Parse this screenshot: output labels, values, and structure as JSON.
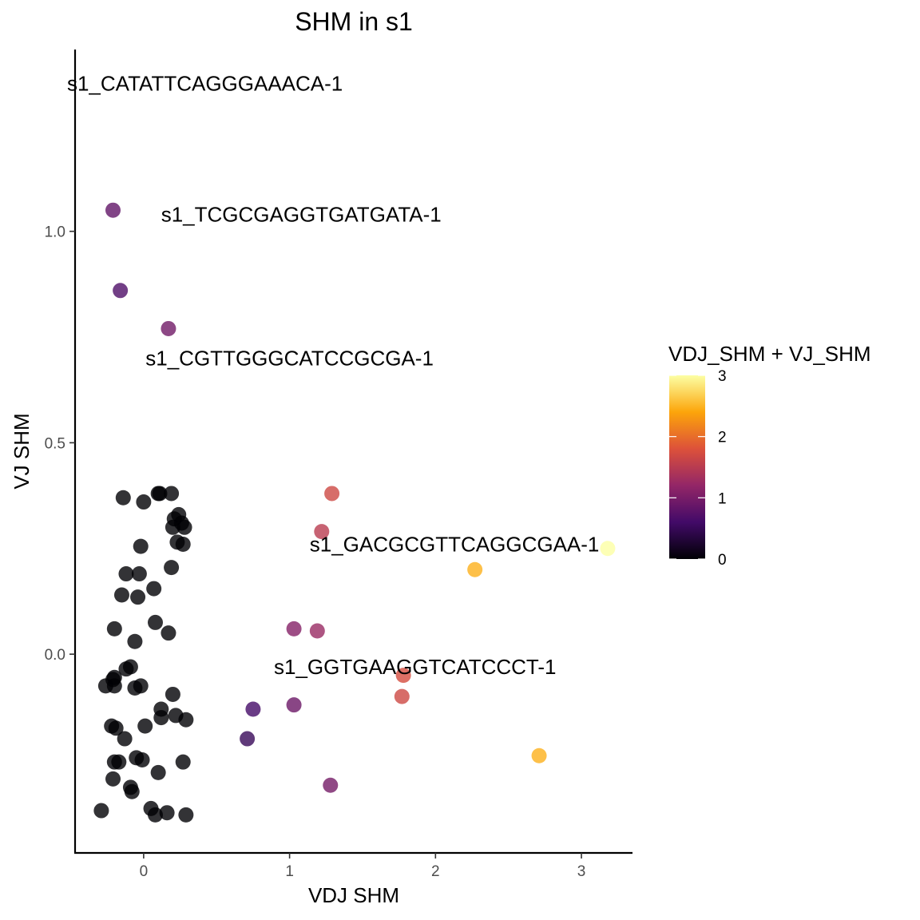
{
  "chart_data": {
    "type": "scatter",
    "title": "SHM in s1",
    "xlabel": "VDJ SHM",
    "ylabel": "VJ SHM",
    "xlim": [
      -0.47,
      3.35
    ],
    "ylim": [
      -0.47,
      1.43
    ],
    "x_ticks": [
      0,
      1,
      2,
      3
    ],
    "x_tick_labels": [
      "0",
      "1",
      "2",
      "3"
    ],
    "y_ticks": [
      0.0,
      0.5,
      1.0
    ],
    "y_tick_labels": [
      "0.0",
      "0.5",
      "1.0"
    ],
    "grid": false,
    "color_scale": {
      "title": "VDJ_SHM + VJ_SHM",
      "palette": "inferno",
      "domain": [
        0,
        3
      ],
      "ticks": [
        0,
        1,
        2,
        3
      ],
      "tick_labels": [
        "0",
        "1",
        "2",
        "3"
      ],
      "stops": [
        "#000004",
        "#420a68",
        "#932667",
        "#dd513a",
        "#fca50a",
        "#fcffa4"
      ],
      "legend_placement": "right"
    },
    "point_alpha": 0.8,
    "points": [
      {
        "x": -0.21,
        "y": 1.05,
        "c": 0.84
      },
      {
        "x": -0.16,
        "y": 0.86,
        "c": 0.7
      },
      {
        "x": 0.17,
        "y": 0.77,
        "c": 0.94
      },
      {
        "x": 1.29,
        "y": 0.38,
        "c": 1.67
      },
      {
        "x": 1.22,
        "y": 0.29,
        "c": 1.51
      },
      {
        "x": 3.18,
        "y": 0.25,
        "c": 3.43
      },
      {
        "x": 2.27,
        "y": 0.2,
        "c": 2.47
      },
      {
        "x": 1.03,
        "y": 0.06,
        "c": 1.09
      },
      {
        "x": 1.19,
        "y": 0.055,
        "c": 1.25
      },
      {
        "x": 1.78,
        "y": -0.05,
        "c": 1.73
      },
      {
        "x": 1.77,
        "y": -0.1,
        "c": 1.67
      },
      {
        "x": 0.75,
        "y": -0.13,
        "c": 0.62
      },
      {
        "x": 1.03,
        "y": -0.12,
        "c": 0.91
      },
      {
        "x": 0.71,
        "y": -0.2,
        "c": 0.51
      },
      {
        "x": 2.71,
        "y": -0.24,
        "c": 2.47
      },
      {
        "x": 1.28,
        "y": -0.31,
        "c": 0.97
      },
      {
        "x": -0.14,
        "y": 0.37,
        "c": 0
      },
      {
        "x": 0.0,
        "y": 0.36,
        "c": 0
      },
      {
        "x": 0.11,
        "y": 0.38,
        "c": 0
      },
      {
        "x": 0.1,
        "y": 0.38,
        "c": 0
      },
      {
        "x": 0.19,
        "y": 0.38,
        "c": 0
      },
      {
        "x": 0.24,
        "y": 0.33,
        "c": 0
      },
      {
        "x": 0.21,
        "y": 0.32,
        "c": 0
      },
      {
        "x": 0.26,
        "y": 0.31,
        "c": 0
      },
      {
        "x": 0.2,
        "y": 0.3,
        "c": 0
      },
      {
        "x": 0.28,
        "y": 0.3,
        "c": 0
      },
      {
        "x": 0.23,
        "y": 0.265,
        "c": 0
      },
      {
        "x": 0.27,
        "y": 0.26,
        "c": 0
      },
      {
        "x": -0.02,
        "y": 0.255,
        "c": 0
      },
      {
        "x": 0.19,
        "y": 0.205,
        "c": 0
      },
      {
        "x": -0.12,
        "y": 0.19,
        "c": 0
      },
      {
        "x": -0.03,
        "y": 0.19,
        "c": 0
      },
      {
        "x": 0.07,
        "y": 0.155,
        "c": 0
      },
      {
        "x": -0.15,
        "y": 0.14,
        "c": 0
      },
      {
        "x": -0.04,
        "y": 0.135,
        "c": 0
      },
      {
        "x": 0.08,
        "y": 0.075,
        "c": 0
      },
      {
        "x": -0.2,
        "y": 0.06,
        "c": 0
      },
      {
        "x": 0.17,
        "y": 0.05,
        "c": 0
      },
      {
        "x": -0.06,
        "y": 0.03,
        "c": 0
      },
      {
        "x": -0.09,
        "y": -0.03,
        "c": 0
      },
      {
        "x": -0.12,
        "y": -0.035,
        "c": 0
      },
      {
        "x": -0.2,
        "y": -0.055,
        "c": 0
      },
      {
        "x": -0.21,
        "y": -0.06,
        "c": 0
      },
      {
        "x": -0.26,
        "y": -0.075,
        "c": 0
      },
      {
        "x": -0.2,
        "y": -0.075,
        "c": 0
      },
      {
        "x": -0.02,
        "y": -0.075,
        "c": 0
      },
      {
        "x": -0.06,
        "y": -0.08,
        "c": 0
      },
      {
        "x": 0.2,
        "y": -0.095,
        "c": 0
      },
      {
        "x": 0.12,
        "y": -0.13,
        "c": 0
      },
      {
        "x": 0.22,
        "y": -0.145,
        "c": 0
      },
      {
        "x": 0.12,
        "y": -0.15,
        "c": 0
      },
      {
        "x": 0.29,
        "y": -0.155,
        "c": 0
      },
      {
        "x": -0.22,
        "y": -0.17,
        "c": 0
      },
      {
        "x": 0.01,
        "y": -0.17,
        "c": 0
      },
      {
        "x": -0.19,
        "y": -0.175,
        "c": 0
      },
      {
        "x": -0.13,
        "y": -0.2,
        "c": 0
      },
      {
        "x": -0.05,
        "y": -0.245,
        "c": 0
      },
      {
        "x": -0.01,
        "y": -0.25,
        "c": 0
      },
      {
        "x": -0.2,
        "y": -0.255,
        "c": 0
      },
      {
        "x": -0.17,
        "y": -0.255,
        "c": 0
      },
      {
        "x": 0.27,
        "y": -0.255,
        "c": 0
      },
      {
        "x": 0.1,
        "y": -0.28,
        "c": 0
      },
      {
        "x": -0.21,
        "y": -0.295,
        "c": 0
      },
      {
        "x": -0.09,
        "y": -0.315,
        "c": 0
      },
      {
        "x": -0.08,
        "y": -0.325,
        "c": 0
      },
      {
        "x": 0.05,
        "y": -0.365,
        "c": 0
      },
      {
        "x": 0.08,
        "y": -0.38,
        "c": 0
      },
      {
        "x": 0.16,
        "y": -0.375,
        "c": 0
      },
      {
        "x": 0.29,
        "y": -0.38,
        "c": 0
      },
      {
        "x": -0.29,
        "y": -0.37,
        "c": 0
      }
    ],
    "annotations": [
      {
        "text": "s1_CATATTCAGGGAAACA-1",
        "x": 0.42,
        "y": 1.35
      },
      {
        "text": "s1_TCGCGAGGTGATGATA-1",
        "x": 1.08,
        "y": 1.04
      },
      {
        "text": "s1_CGTTGGGCATCCGCGA-1",
        "x": 1.0,
        "y": 0.7
      },
      {
        "text": "s1_GACGCGTTCAGGCGAA-1",
        "x": 2.13,
        "y": 0.26
      },
      {
        "text": "s1_GGTGAAGGTCATCCCT-1",
        "x": 1.86,
        "y": -0.03
      }
    ]
  }
}
